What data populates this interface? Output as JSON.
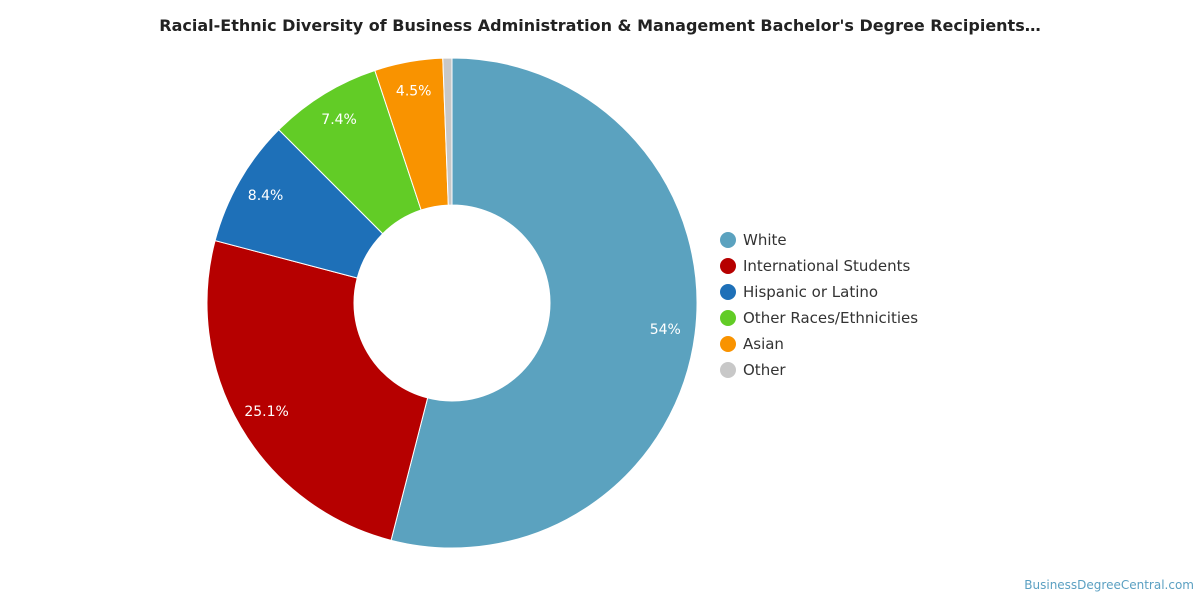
{
  "chart_data": {
    "type": "pie",
    "subtype": "donut",
    "title": "Racial-Ethnic Diversity of Business Administration & Management Bachelor's Degree Recipients…",
    "categories": [
      "White",
      "International Students",
      "Hispanic or Latino",
      "Other Races/Ethnicities",
      "Asian",
      "Other"
    ],
    "values": [
      54.0,
      25.1,
      8.4,
      7.4,
      4.5,
      0.6
    ],
    "labels": [
      "54%",
      "25.1%",
      "8.4%",
      "7.4%",
      "4.5%",
      ""
    ],
    "colors": [
      "#5ba2bf",
      "#b60000",
      "#1e70b8",
      "#62cc26",
      "#f99300",
      "#c8c8c8"
    ],
    "legend_position": "right",
    "start_angle": "top, clockwise"
  },
  "source": "BusinessDegreeCentral.com"
}
